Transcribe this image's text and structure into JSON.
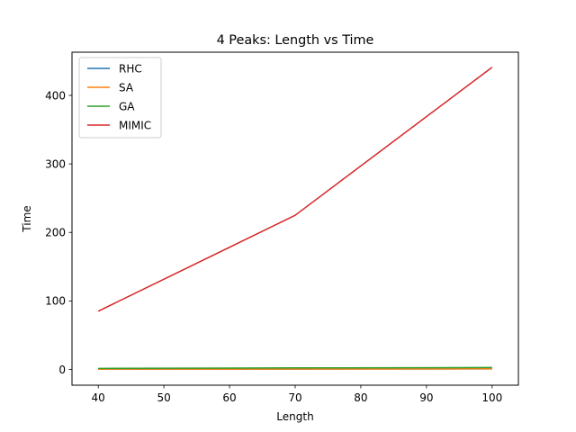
{
  "chart_data": {
    "type": "line",
    "title": "4 Peaks: Length vs Time",
    "xlabel": "Length",
    "ylabel": "Time",
    "x": [
      40,
      70,
      100
    ],
    "xlim": [
      36,
      104
    ],
    "ylim": [
      -23,
      463
    ],
    "xticks": [
      40,
      50,
      60,
      70,
      80,
      90,
      100
    ],
    "yticks": [
      0,
      100,
      200,
      300,
      400
    ],
    "grid": false,
    "legend_position": "upper-left",
    "series": [
      {
        "name": "RHC",
        "color": "#1f77b4",
        "values": [
          0.3,
          0.5,
          0.8
        ]
      },
      {
        "name": "SA",
        "color": "#ff7f0e",
        "values": [
          0.4,
          0.6,
          0.9
        ]
      },
      {
        "name": "GA",
        "color": "#2ca02c",
        "values": [
          1.5,
          2.2,
          2.8
        ]
      },
      {
        "name": "MIMIC",
        "color": "#d62728",
        "values": [
          85,
          225,
          441
        ]
      }
    ]
  }
}
